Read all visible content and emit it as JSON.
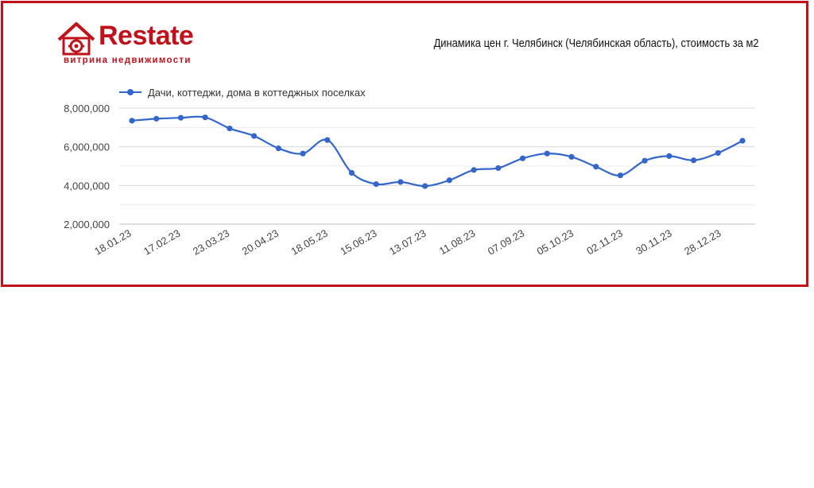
{
  "brand": {
    "name": "Restate",
    "tagline": "витрина недвижимости",
    "color": "#c1121b"
  },
  "chart_data": {
    "type": "line",
    "title": "Динамика цен г. Челябинск (Челябинская область), стоимость за м2",
    "xlabel": "",
    "ylabel": "",
    "ylim": [
      2000000,
      8000000
    ],
    "yticks": [
      "2,000,000",
      "4,000,000",
      "6,000,000",
      "8,000,000"
    ],
    "ytick_values": [
      2000000,
      4000000,
      6000000,
      8000000
    ],
    "xtick_labels": [
      "18.01.23",
      "17.02.23",
      "23.03.23",
      "20.04.23",
      "18.05.23",
      "15.06.23",
      "13.07.23",
      "11.08.23",
      "07.09.23",
      "05.10.23",
      "02.11.23",
      "30.11.23",
      "28.12.23"
    ],
    "legend_position": "top-left",
    "grid": true,
    "series": [
      {
        "name": "Дачи, коттеджи, дома в коттеджных поселках",
        "color": "#3366cc",
        "values": [
          7350000,
          7450000,
          7500000,
          7520000,
          6950000,
          6560000,
          5920000,
          5650000,
          6350000,
          4650000,
          4070000,
          4180000,
          3970000,
          4270000,
          4800000,
          4900000,
          5400000,
          5650000,
          5480000,
          4970000,
          4520000,
          5280000,
          5520000,
          5300000,
          5680000,
          6310000
        ]
      }
    ]
  }
}
